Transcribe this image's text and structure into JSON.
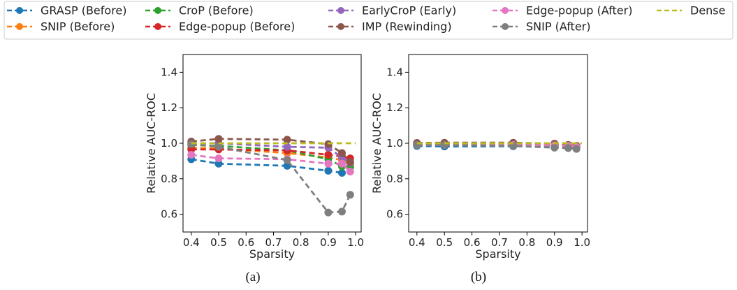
{
  "legend": {
    "placement": "top",
    "entries": [
      {
        "name": "GRASP (Before)",
        "color": "#1f77b4",
        "marker": true
      },
      {
        "name": "SNIP (Before)",
        "color": "#ff7f0e",
        "marker": true
      },
      {
        "name": "CroP (Before)",
        "color": "#2ca02c",
        "marker": true
      },
      {
        "name": "Edge-popup (Before)",
        "color": "#d62728",
        "marker": true
      },
      {
        "name": "EarlyCroP (Early)",
        "color": "#9467bd",
        "marker": true
      },
      {
        "name": "IMP (Rewinding)",
        "color": "#8c564b",
        "marker": true
      },
      {
        "name": "Edge-popup (After)",
        "color": "#e377c2",
        "marker": true
      },
      {
        "name": "SNIP (After)",
        "color": "#7f7f7f",
        "marker": true
      },
      {
        "name": "Dense",
        "color": "#bcbd22",
        "marker": false
      }
    ]
  },
  "chart_data": [
    {
      "type": "line",
      "caption": "(a)",
      "xlabel": "Sparsity",
      "ylabel": "Relative AUC-ROC",
      "xlim": [
        0.37,
        1.02
      ],
      "ylim": [
        0.5,
        1.5
      ],
      "xticks": [
        "0.4",
        "0.5",
        "0.6",
        "0.7",
        "0.8",
        "0.9",
        "1.0"
      ],
      "yticks": [
        "0.6",
        "0.8",
        "1.0",
        "1.2",
        "1.4"
      ],
      "grid": false,
      "x": [
        0.4,
        0.5,
        0.75,
        0.9,
        0.95,
        0.98
      ],
      "series": [
        {
          "name": "GRASP (Before)",
          "values": [
            0.91,
            0.885,
            0.873,
            0.845,
            0.833,
            null
          ]
        },
        {
          "name": "SNIP (Before)",
          "values": [
            0.975,
            0.97,
            0.945,
            0.92,
            0.905,
            0.88
          ]
        },
        {
          "name": "CroP (Before)",
          "values": [
            0.99,
            0.985,
            0.96,
            0.91,
            0.87,
            0.865
          ]
        },
        {
          "name": "Edge-popup (Before)",
          "values": [
            0.965,
            0.965,
            0.96,
            0.935,
            0.925,
            0.915
          ]
        },
        {
          "name": "EarlyCroP (Early)",
          "values": [
            1.0,
            1.0,
            0.98,
            0.975,
            0.92,
            0.89
          ]
        },
        {
          "name": "IMP (Rewinding)",
          "values": [
            1.01,
            1.025,
            1.02,
            0.995,
            0.945,
            0.895
          ]
        },
        {
          "name": "Edge-popup (After)",
          "values": [
            0.935,
            0.915,
            0.91,
            0.885,
            0.885,
            0.84
          ]
        },
        {
          "name": "SNIP (After)",
          "values": [
            0.995,
            0.98,
            0.905,
            0.61,
            0.615,
            0.71
          ]
        },
        {
          "name": "Dense",
          "values": [
            1.0,
            1.0,
            1.0,
            1.0,
            1.0,
            1.0
          ],
          "line_only": true
        }
      ]
    },
    {
      "type": "line",
      "caption": "(b)",
      "xlabel": "Sparsity",
      "ylabel": "Relative AUC-ROC",
      "xlim": [
        0.37,
        1.02
      ],
      "ylim": [
        0.5,
        1.5
      ],
      "xticks": [
        "0.4",
        "0.5",
        "0.6",
        "0.7",
        "0.8",
        "0.9",
        "1.0"
      ],
      "yticks": [
        "0.6",
        "0.8",
        "1.0",
        "1.2",
        "1.4"
      ],
      "grid": false,
      "x": [
        0.4,
        0.5,
        0.75,
        0.9,
        0.95,
        0.98
      ],
      "series": [
        {
          "name": "GRASP (Before)",
          "values": [
            0.985,
            0.982,
            0.983,
            0.982,
            0.98,
            0.978
          ]
        },
        {
          "name": "SNIP (Before)",
          "values": [
            0.995,
            0.995,
            0.995,
            0.99,
            0.985,
            0.98
          ]
        },
        {
          "name": "CroP (Before)",
          "values": [
            0.995,
            0.995,
            0.993,
            0.99,
            0.985,
            0.98
          ]
        },
        {
          "name": "Edge-popup (Before)",
          "values": [
            0.998,
            0.998,
            0.997,
            0.995,
            0.99,
            0.985
          ]
        },
        {
          "name": "EarlyCroP (Early)",
          "values": [
            0.993,
            0.993,
            0.993,
            0.99,
            0.985,
            0.98
          ]
        },
        {
          "name": "IMP (Rewinding)",
          "values": [
            1.002,
            1.003,
            1.003,
            0.998,
            0.99,
            0.985
          ]
        },
        {
          "name": "Edge-popup (After)",
          "values": [
            0.99,
            0.99,
            0.99,
            0.988,
            0.985,
            0.98
          ]
        },
        {
          "name": "SNIP (After)",
          "values": [
            0.99,
            0.99,
            0.985,
            0.975,
            0.973,
            0.968
          ]
        },
        {
          "name": "Dense",
          "values": [
            1.0,
            1.0,
            1.0,
            1.0,
            1.0,
            1.0
          ],
          "line_only": true
        }
      ]
    }
  ]
}
